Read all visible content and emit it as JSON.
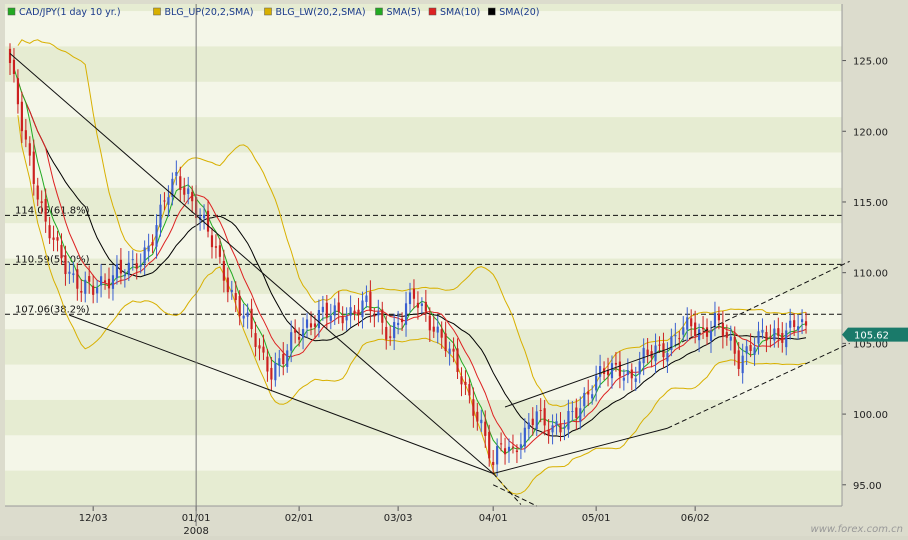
{
  "chart_data": {
    "type": "candlestick",
    "symbol_label": "CAD/JPY(1 day  10 yr.)",
    "legend": [
      {
        "label": "CAD/JPY(1 day  10 yr.)",
        "color": "#22aa22"
      },
      {
        "label": "BLG_UP(20,2,SMA)",
        "color": "#d8b000"
      },
      {
        "label": "BLG_LW(20,2,SMA)",
        "color": "#d8b000"
      },
      {
        "label": "SMA(5)",
        "color": "#22aa22"
      },
      {
        "label": "SMA(10)",
        "color": "#dd2222"
      },
      {
        "label": "SMA(20)",
        "color": "#000000"
      }
    ],
    "y_ticks": [
      "125.00",
      "120.00",
      "115.00",
      "110.00",
      "105.00",
      "100.00",
      "95.00"
    ],
    "x_ticks": [
      "12/03",
      "01/01",
      "02/01",
      "03/03",
      "04/01",
      "05/01",
      "06/02"
    ],
    "x_year_label": "2008",
    "ylim": [
      93.5,
      129.0
    ],
    "last_price": "105.62",
    "fib_levels": [
      {
        "value": 114.05,
        "label": "114.05(61.8%)"
      },
      {
        "value": 110.59,
        "label": "110.59(50.0%)"
      },
      {
        "value": 107.06,
        "label": "107.06(38.2%)"
      }
    ],
    "colors": {
      "up": "#3a5fd0",
      "down": "#cc2020",
      "bollinger": "#d8b000",
      "sma5": "#22aa22",
      "sma10": "#dd2222",
      "sma20": "#000000",
      "price_tag": "#1a7a6a"
    },
    "price_anchors": [
      [
        0,
        124.5
      ],
      [
        3,
        120.5
      ],
      [
        6,
        117.0
      ],
      [
        9,
        113.2
      ],
      [
        12,
        111.5
      ],
      [
        15,
        110.2
      ],
      [
        18,
        109.0
      ],
      [
        21,
        108.6
      ],
      [
        24,
        109.5
      ],
      [
        27,
        110.3
      ],
      [
        30,
        110.0
      ],
      [
        33,
        110.8
      ],
      [
        36,
        112.8
      ],
      [
        39,
        115.0
      ],
      [
        42,
        116.5
      ],
      [
        45,
        115.8
      ],
      [
        48,
        114.0
      ],
      [
        51,
        112.0
      ],
      [
        54,
        110.0
      ],
      [
        57,
        108.0
      ],
      [
        60,
        106.3
      ],
      [
        63,
        104.5
      ],
      [
        66,
        103.2
      ],
      [
        69,
        103.8
      ],
      [
        72,
        105.5
      ],
      [
        75,
        106.5
      ],
      [
        78,
        107.0
      ],
      [
        81,
        106.9
      ],
      [
        84,
        107.2
      ],
      [
        87,
        107.4
      ],
      [
        90,
        107.6
      ],
      [
        93,
        106.8
      ],
      [
        96,
        105.8
      ],
      [
        99,
        106.8
      ],
      [
        102,
        108.3
      ],
      [
        105,
        107.3
      ],
      [
        108,
        105.6
      ],
      [
        111,
        104.2
      ],
      [
        114,
        102.8
      ],
      [
        117,
        100.5
      ],
      [
        120,
        98.0
      ],
      [
        122,
        96.2
      ],
      [
        124,
        98.3
      ],
      [
        127,
        97.4
      ],
      [
        130,
        98.2
      ],
      [
        133,
        100.3
      ],
      [
        136,
        99.3
      ],
      [
        139,
        98.8
      ],
      [
        142,
        99.8
      ],
      [
        145,
        101.3
      ],
      [
        148,
        102.5
      ],
      [
        151,
        102.9
      ],
      [
        154,
        103.4
      ],
      [
        157,
        102.6
      ],
      [
        160,
        103.8
      ],
      [
        163,
        104.6
      ],
      [
        166,
        104.9
      ],
      [
        169,
        105.6
      ],
      [
        172,
        106.2
      ],
      [
        175,
        105.9
      ],
      [
        178,
        106.6
      ],
      [
        181,
        105.2
      ],
      [
        184,
        104.0
      ],
      [
        187,
        104.9
      ],
      [
        190,
        105.3
      ],
      [
        193,
        105.6
      ],
      [
        196,
        106.1
      ],
      [
        199,
        106.4
      ],
      [
        201,
        105.6
      ]
    ],
    "trend_lines": [
      {
        "name": "downtrend-line",
        "from": [
          0,
          125.5
        ],
        "to": [
          122,
          95.8
        ]
      },
      {
        "name": "lower-support-line",
        "from": [
          15,
          107.0
        ],
        "to": [
          122,
          95.8
        ]
      },
      {
        "name": "channel-upper-1",
        "from": [
          125,
          100.5
        ],
        "to": [
          166,
          104.6
        ]
      },
      {
        "name": "channel-lower-1",
        "from": [
          122,
          95.8
        ],
        "to": [
          166,
          99.0
        ]
      },
      {
        "name": "channel-upper-dashed",
        "from": [
          166,
          104.6
        ],
        "to": [
          212,
          110.8
        ],
        "dashed": true
      },
      {
        "name": "channel-lower-dashed",
        "from": [
          166,
          99.0
        ],
        "to": [
          212,
          105.0
        ],
        "dashed": true
      },
      {
        "name": "projection-dashed-1",
        "from": [
          122,
          95.8
        ],
        "to": [
          129,
          93.6
        ],
        "dashed": true
      },
      {
        "name": "projection-dashed-2",
        "from": [
          122,
          95.0
        ],
        "to": [
          133,
          93.5
        ],
        "dashed": true
      }
    ],
    "cursor_date": "01/01",
    "watermark": "www.forex.com.cn",
    "series_count": 202
  }
}
